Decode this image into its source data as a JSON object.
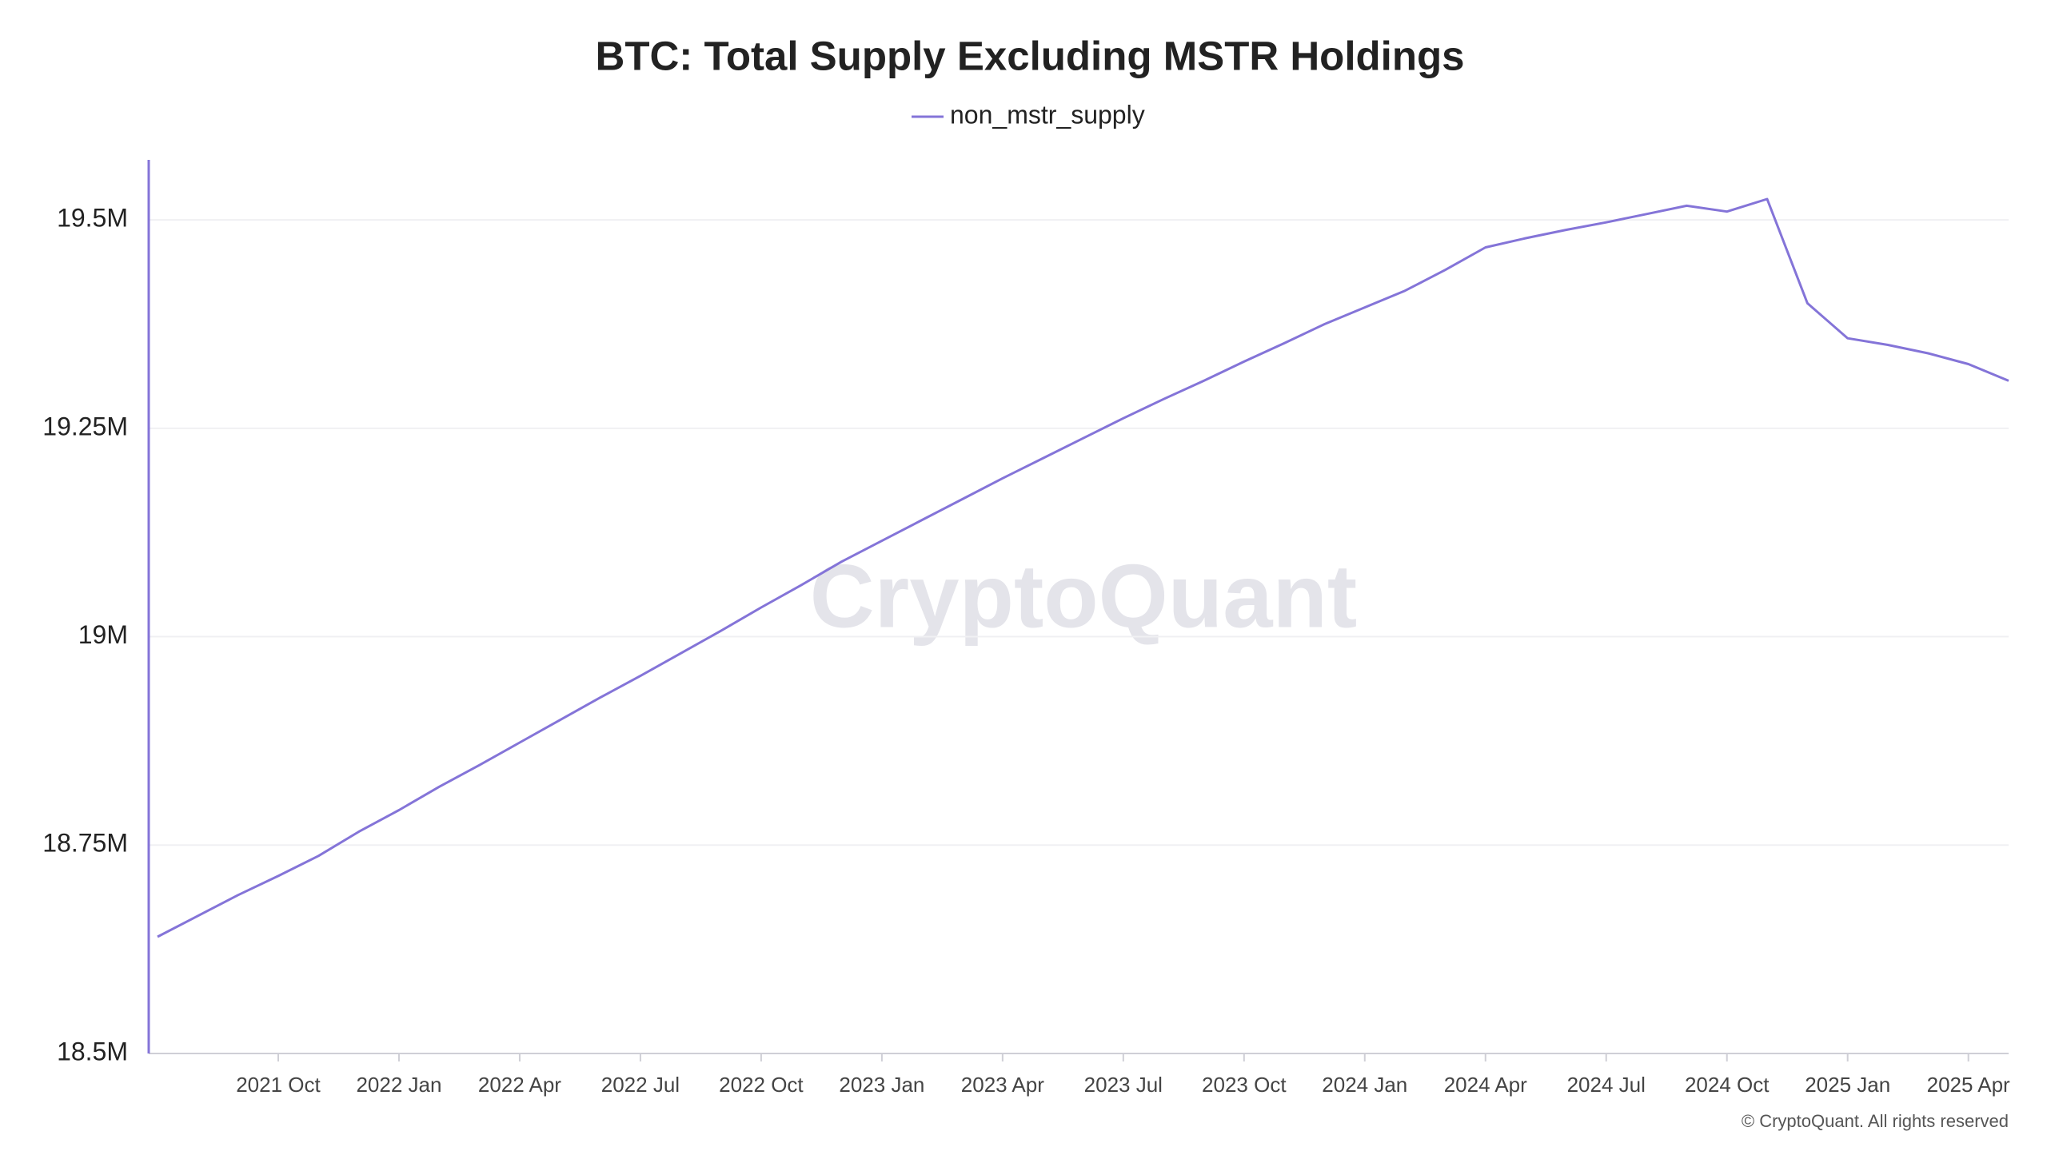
{
  "chart_data": {
    "type": "line",
    "title": "BTC: Total Supply Excluding MSTR Holdings",
    "watermark": "CryptoQuant",
    "copyright": "© CryptoQuant. All rights reserved",
    "x": [
      "2021-07",
      "2021-08",
      "2021-09",
      "2021-10",
      "2021-11",
      "2021-12",
      "2022-01",
      "2022-02",
      "2022-03",
      "2022-04",
      "2022-05",
      "2022-06",
      "2022-07",
      "2022-08",
      "2022-09",
      "2022-10",
      "2022-11",
      "2022-12",
      "2023-01",
      "2023-02",
      "2023-03",
      "2023-04",
      "2023-05",
      "2023-06",
      "2023-07",
      "2023-08",
      "2023-09",
      "2023-10",
      "2023-11",
      "2023-12",
      "2024-01",
      "2024-02",
      "2024-03",
      "2024-04",
      "2024-05",
      "2024-06",
      "2024-07",
      "2024-08",
      "2024-09",
      "2024-10",
      "2024-11",
      "2024-12",
      "2025-01",
      "2025-02",
      "2025-03",
      "2025-04",
      "2025-05"
    ],
    "series": [
      {
        "name": "non_mstr_supply",
        "color": "#8474d8",
        "values": [
          18640000,
          18665000,
          18690000,
          18713000,
          18737000,
          18766000,
          18792000,
          18820000,
          18846000,
          18873000,
          18900000,
          18927000,
          18953000,
          18980000,
          19007000,
          19035000,
          19062000,
          19090000,
          19115000,
          19140000,
          19165000,
          19190000,
          19214000,
          19238000,
          19262000,
          19285000,
          19307000,
          19330000,
          19352000,
          19375000,
          19395000,
          19415000,
          19440000,
          19467000,
          19478000,
          19488000,
          19497000,
          19507000,
          19517000,
          19510000,
          19525000,
          19400000,
          19358000,
          19350000,
          19340000,
          19327000,
          19307000
        ]
      }
    ],
    "xticks": [
      {
        "value": "2021-10",
        "label": "2021 Oct"
      },
      {
        "value": "2022-01",
        "label": "2022 Jan"
      },
      {
        "value": "2022-04",
        "label": "2022 Apr"
      },
      {
        "value": "2022-07",
        "label": "2022 Jul"
      },
      {
        "value": "2022-10",
        "label": "2022 Oct"
      },
      {
        "value": "2023-01",
        "label": "2023 Jan"
      },
      {
        "value": "2023-04",
        "label": "2023 Apr"
      },
      {
        "value": "2023-07",
        "label": "2023 Jul"
      },
      {
        "value": "2023-10",
        "label": "2023 Oct"
      },
      {
        "value": "2024-01",
        "label": "2024 Jan"
      },
      {
        "value": "2024-04",
        "label": "2024 Apr"
      },
      {
        "value": "2024-07",
        "label": "2024 Jul"
      },
      {
        "value": "2024-10",
        "label": "2024 Oct"
      },
      {
        "value": "2025-01",
        "label": "2025 Jan"
      },
      {
        "value": "2025-04",
        "label": "2025 Apr"
      }
    ],
    "ylim": [
      18500000,
      19572000
    ],
    "yticks": [
      {
        "value": 18500000,
        "label": "18.5M"
      },
      {
        "value": 18750000,
        "label": "18.75M"
      },
      {
        "value": 19000000,
        "label": "19M"
      },
      {
        "value": 19250000,
        "label": "19.25M"
      },
      {
        "value": 19500000,
        "label": "19.5M"
      }
    ],
    "grid": true,
    "legend": "top"
  }
}
